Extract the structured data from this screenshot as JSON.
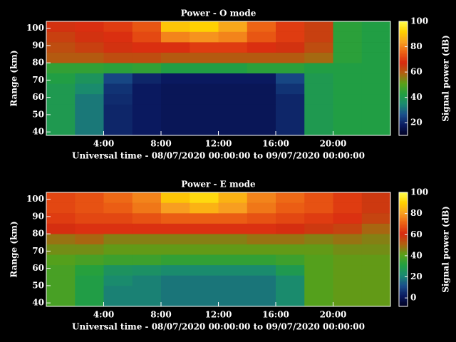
{
  "chart_data": [
    {
      "type": "heatmap",
      "title": "Power - O mode",
      "ylabel": "Range (km)",
      "xlabel": "Universal time - 08/07/2020 00:00:00 to 09/07/2020 00:00:00",
      "colorbar_label": "Signal power (dB)",
      "x": [
        1,
        3,
        5,
        7,
        9,
        11,
        13,
        15,
        17,
        19,
        21,
        23
      ],
      "y": [
        41,
        47,
        53,
        59,
        65,
        71,
        77,
        83,
        89,
        95,
        101
      ],
      "values": [
        [
          40,
          32,
          20,
          18,
          17,
          17,
          17,
          17,
          20,
          40,
          42,
          42
        ],
        [
          40,
          32,
          20,
          18,
          17,
          17,
          17,
          17,
          20,
          40,
          42,
          42
        ],
        [
          40,
          32,
          20,
          18,
          17,
          17,
          17,
          17,
          20,
          40,
          42,
          42
        ],
        [
          40,
          32,
          21,
          18,
          17,
          17,
          17,
          17,
          20,
          40,
          42,
          42
        ],
        [
          40,
          35,
          22,
          18,
          17,
          17,
          17,
          17,
          22,
          40,
          42,
          42
        ],
        [
          42,
          38,
          25,
          20,
          18,
          18,
          18,
          18,
          25,
          40,
          42,
          42
        ],
        [
          45,
          45,
          44,
          45,
          42,
          42,
          42,
          44,
          44,
          42,
          42,
          42
        ],
        [
          60,
          60,
          62,
          62,
          60,
          60,
          60,
          60,
          60,
          58,
          44,
          42
        ],
        [
          62,
          64,
          66,
          68,
          68,
          70,
          70,
          68,
          66,
          62,
          44,
          42
        ],
        [
          64,
          66,
          68,
          72,
          80,
          82,
          80,
          74,
          70,
          64,
          44,
          42
        ],
        [
          66,
          68,
          70,
          74,
          90,
          92,
          85,
          76,
          70,
          64,
          44,
          42
        ]
      ],
      "xlim": [
        0,
        24
      ],
      "xticks": [
        {
          "value": 4,
          "label": "4:00"
        },
        {
          "value": 8,
          "label": "8:00"
        },
        {
          "value": 12,
          "label": "12:00"
        },
        {
          "value": 16,
          "label": "16:00"
        },
        {
          "value": 20,
          "label": "20:00"
        }
      ],
      "ylim": [
        38,
        104
      ],
      "yticks": [
        40,
        50,
        60,
        70,
        80,
        90,
        100
      ],
      "clim": [
        10,
        100
      ],
      "cticks": [
        20,
        40,
        60,
        80,
        100
      ],
      "colorscale": [
        "#000020",
        "#0a1a60",
        "#1a4f8a",
        "#1a8a70",
        "#22a040",
        "#5aa018",
        "#b06010",
        "#d82a10",
        "#ec6014",
        "#f8a020",
        "#ffd000",
        "#ffff50"
      ]
    },
    {
      "type": "heatmap",
      "title": "Power - E mode",
      "ylabel": "Range (km)",
      "xlabel": "Universal time - 08/07/2020 00:00:00 to 09/07/2020 00:00:00",
      "colorbar_label": "Signal power (dB)",
      "x": [
        1,
        3,
        5,
        7,
        9,
        11,
        13,
        15,
        17,
        19,
        21,
        23
      ],
      "y": [
        41,
        47,
        53,
        59,
        65,
        71,
        77,
        83,
        89,
        95,
        101
      ],
      "values": [
        [
          38,
          30,
          20,
          20,
          18,
          18,
          18,
          18,
          22,
          40,
          42,
          42
        ],
        [
          38,
          30,
          20,
          20,
          18,
          18,
          18,
          18,
          22,
          40,
          42,
          42
        ],
        [
          38,
          30,
          22,
          20,
          18,
          18,
          18,
          18,
          22,
          40,
          42,
          42
        ],
        [
          38,
          32,
          25,
          24,
          22,
          22,
          22,
          22,
          28,
          40,
          42,
          42
        ],
        [
          40,
          38,
          36,
          36,
          34,
          34,
          34,
          34,
          36,
          40,
          42,
          42
        ],
        [
          44,
          44,
          42,
          42,
          42,
          42,
          42,
          42,
          42,
          42,
          44,
          44
        ],
        [
          48,
          50,
          46,
          46,
          46,
          46,
          46,
          48,
          48,
          46,
          48,
          46
        ],
        [
          60,
          62,
          62,
          62,
          62,
          62,
          62,
          62,
          60,
          58,
          56,
          50
        ],
        [
          64,
          66,
          66,
          68,
          70,
          70,
          70,
          68,
          66,
          64,
          62,
          56
        ],
        [
          66,
          68,
          70,
          74,
          80,
          84,
          80,
          74,
          70,
          68,
          64,
          58
        ],
        [
          66,
          68,
          72,
          76,
          88,
          92,
          84,
          76,
          72,
          68,
          64,
          58
        ]
      ],
      "xlim": [
        0,
        24
      ],
      "xticks": [
        {
          "value": 4,
          "label": "4:00"
        },
        {
          "value": 8,
          "label": "8:00"
        },
        {
          "value": 12,
          "label": "12:00"
        },
        {
          "value": 16,
          "label": "16:00"
        },
        {
          "value": 20,
          "label": "20:00"
        }
      ],
      "ylim": [
        38,
        104
      ],
      "yticks": [
        40,
        50,
        60,
        70,
        80,
        90,
        100
      ],
      "clim": [
        -8,
        100
      ],
      "cticks": [
        0,
        20,
        40,
        60,
        80,
        100
      ],
      "colorscale": [
        "#000020",
        "#0a1a60",
        "#1a4f8a",
        "#1a8a70",
        "#22a040",
        "#5aa018",
        "#b06010",
        "#d82a10",
        "#ec6014",
        "#f8a020",
        "#ffd000",
        "#ffff50"
      ]
    }
  ]
}
